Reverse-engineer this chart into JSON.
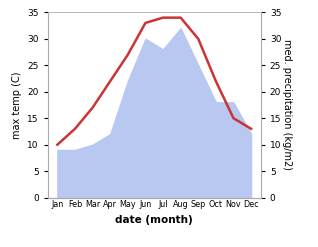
{
  "months": [
    "Jan",
    "Feb",
    "Mar",
    "Apr",
    "May",
    "Jun",
    "Jul",
    "Aug",
    "Sep",
    "Oct",
    "Nov",
    "Dec"
  ],
  "temperature": [
    10,
    13,
    17,
    22,
    27,
    33,
    34,
    34,
    30,
    22,
    15,
    13
  ],
  "precipitation": [
    9,
    9,
    10,
    12,
    22,
    30,
    28,
    32,
    25,
    18,
    18,
    12
  ],
  "temp_color": "#cc3333",
  "precip_color": "#b8c8f0",
  "ylim_left": [
    0,
    35
  ],
  "ylim_right": [
    0,
    35
  ],
  "yticks_left": [
    0,
    5,
    10,
    15,
    20,
    25,
    30,
    35
  ],
  "yticks_right": [
    0,
    5,
    10,
    15,
    20,
    25,
    30,
    35
  ],
  "ylabel_left": "max temp (C)",
  "ylabel_right": "med. precipitation (kg/m2)",
  "xlabel": "date (month)",
  "bg_color": "#ffffff",
  "plot_bg_color": "#ffffff",
  "temp_linewidth": 1.8,
  "spine_color": "#aaaaaa"
}
